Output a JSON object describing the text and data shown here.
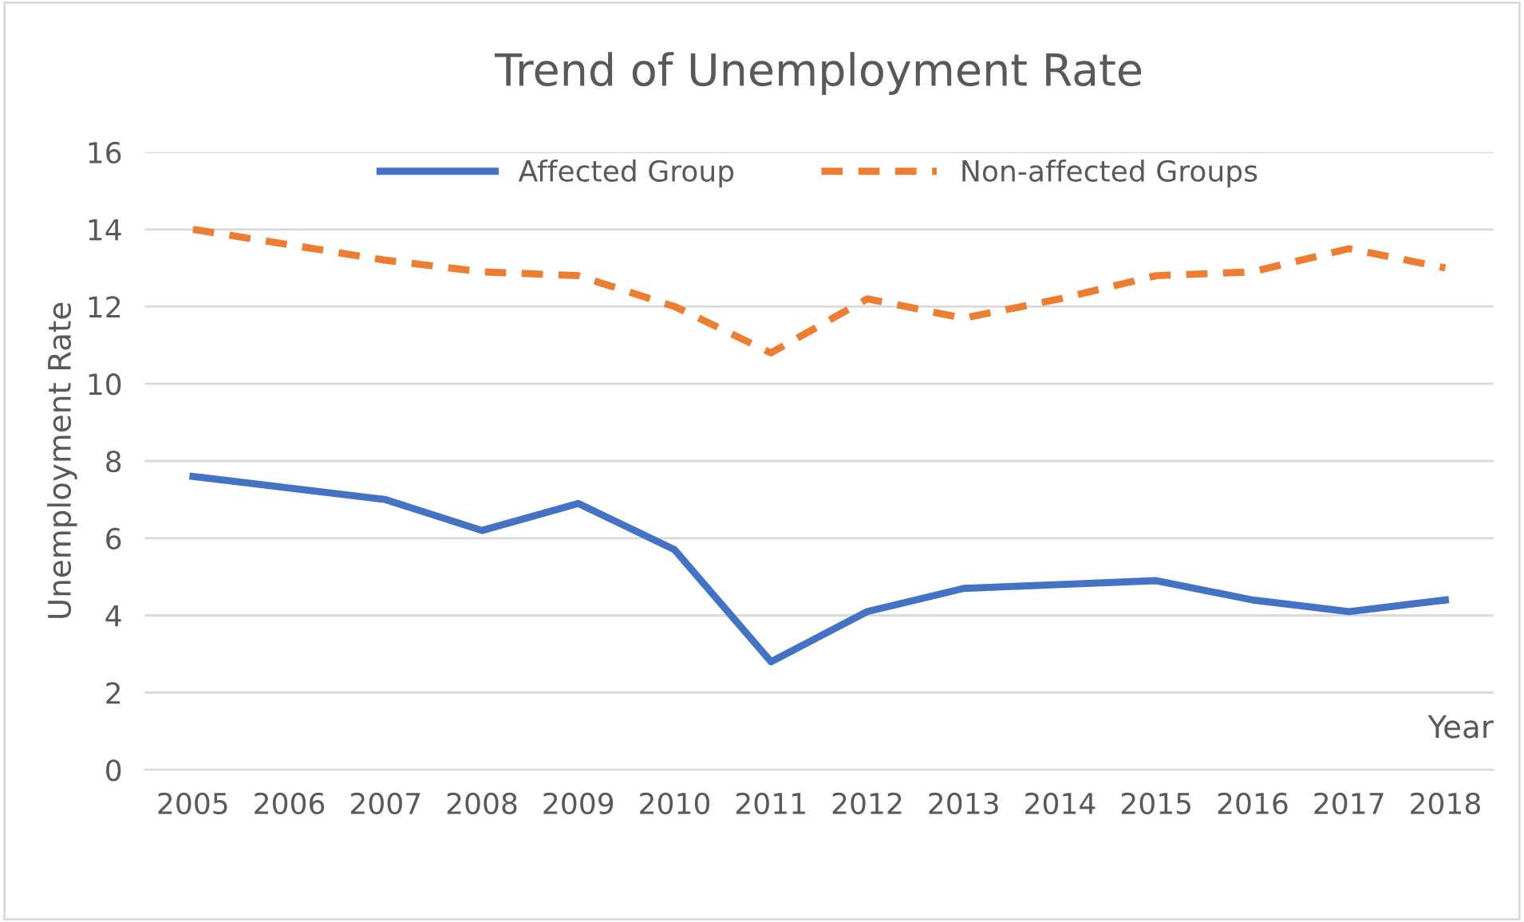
{
  "chart_data": {
    "type": "line",
    "title": "Trend of Unemployment Rate",
    "xlabel": "Year",
    "ylabel": "Unemployment Rate",
    "categories": [
      "2005",
      "2006",
      "2007",
      "2008",
      "2009",
      "2010",
      "2011",
      "2012",
      "2013",
      "2014",
      "2015",
      "2016",
      "2017",
      "2018"
    ],
    "series": [
      {
        "name": "Affected Group",
        "color": "#4472c4",
        "line_style": "solid",
        "values": [
          7.6,
          7.3,
          7.0,
          6.2,
          6.9,
          5.7,
          2.8,
          4.1,
          4.7,
          4.8,
          4.9,
          4.4,
          4.1,
          4.4
        ]
      },
      {
        "name": "Non-affected Groups",
        "color": "#ed7d31",
        "line_style": "dashed",
        "values": [
          14.0,
          13.6,
          13.2,
          12.9,
          12.8,
          12.0,
          10.8,
          12.2,
          11.7,
          12.2,
          12.8,
          12.9,
          13.5,
          13.0
        ]
      }
    ],
    "ylim": [
      0,
      16
    ],
    "yticks": [
      0,
      2,
      4,
      6,
      8,
      10,
      12,
      14,
      16
    ],
    "grid": "y",
    "legend": "top",
    "marker": "none"
  }
}
